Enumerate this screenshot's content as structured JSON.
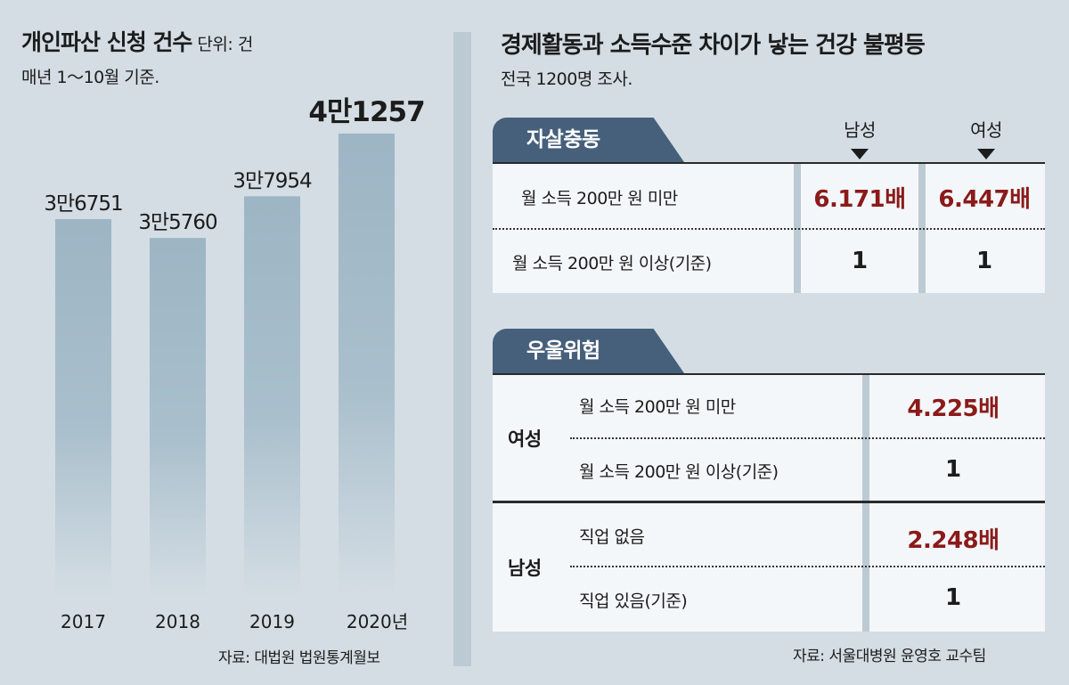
{
  "left": {
    "title": "개인파산 신청 건수",
    "unit": "단위: 건",
    "subtitle": "매년 1～10월 기준.",
    "source": "자료: 대법원 법원통계월보"
  },
  "chart_data": {
    "type": "bar",
    "categories": [
      "2017",
      "2018",
      "2019",
      "2020년"
    ],
    "values": [
      36751,
      35760,
      37954,
      41257
    ],
    "labels": [
      "3만6751",
      "3만5760",
      "3만7954",
      "4만1257"
    ],
    "title": "개인파산 신청 건수",
    "ylabel": "단위: 건",
    "colors": {
      "bar": "#9db5c4"
    }
  },
  "right": {
    "title": "경제활동과 소득수준 차이가 낳는 건강 불평등",
    "subtitle": "전국 1200명 조사.",
    "source": "자료: 서울대병원 윤영호 교수팀",
    "table1": {
      "tab": "자살충동",
      "headers": [
        "남성",
        "여성"
      ],
      "rows": [
        {
          "label": "월 소득 200만 원 미만",
          "male": "6.171배",
          "female": "6.447배"
        },
        {
          "label": "월 소득 200만 원 이상(기준)",
          "male": "1",
          "female": "1"
        }
      ]
    },
    "table2": {
      "tab": "우울위험",
      "groups": [
        {
          "name": "여성",
          "rows": [
            {
              "label": "월 소득 200만 원 미만",
              "value": "4.225배"
            },
            {
              "label": "월 소득 200만 원 이상(기준)",
              "value": "1"
            }
          ]
        },
        {
          "name": "남성",
          "rows": [
            {
              "label": "직업 없음",
              "value": "2.248배"
            },
            {
              "label": "직업 있음(기준)",
              "value": "1"
            }
          ]
        }
      ]
    }
  },
  "colors": {
    "tab": "#46607b",
    "highlight": "#8b1a1a",
    "background": "#d4dde4"
  }
}
